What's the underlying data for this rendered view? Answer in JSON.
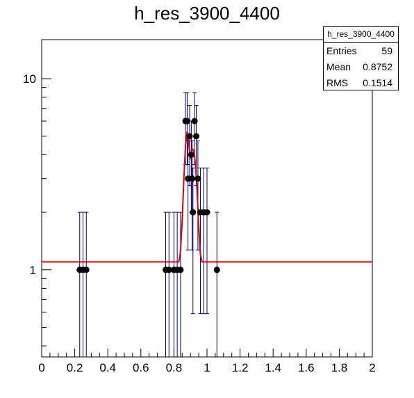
{
  "chart_data": {
    "type": "scatter",
    "title": "h_res_3900_4400",
    "xlabel": "",
    "ylabel": "",
    "xlim": [
      0,
      2
    ],
    "ylim": [
      0.35,
      16
    ],
    "yscale": "log",
    "grid": false,
    "x_ticks": [
      "0",
      "0.2",
      "0.4",
      "0.6",
      "0.8",
      "1",
      "1.2",
      "1.4",
      "1.6",
      "1.8",
      "2"
    ],
    "y_ticks": [
      "1",
      "10"
    ],
    "stats_box": {
      "title": "h_res_3900_4400",
      "entries_label": "Entries",
      "entries_value": "59",
      "mean_label": "Mean",
      "mean_value": "0.8752",
      "rms_label": "RMS",
      "rms_value": "0.1514",
      "placement": "top-right"
    },
    "series": [
      {
        "points": [
          {
            "x": 0.23,
            "y": 1,
            "lo": 0,
            "hi": 2
          },
          {
            "x": 0.25,
            "y": 1,
            "lo": 0,
            "hi": 2
          },
          {
            "x": 0.27,
            "y": 1,
            "lo": 0,
            "hi": 2
          },
          {
            "x": 0.75,
            "y": 1,
            "lo": 0,
            "hi": 2
          },
          {
            "x": 0.77,
            "y": 1,
            "lo": 0,
            "hi": 2
          },
          {
            "x": 0.8,
            "y": 1,
            "lo": 0,
            "hi": 2
          },
          {
            "x": 0.82,
            "y": 1,
            "lo": 0,
            "hi": 2
          },
          {
            "x": 0.84,
            "y": 1,
            "lo": 0,
            "hi": 2
          },
          {
            "x": 0.87,
            "y": 6,
            "lo": 3.55,
            "hi": 8.45
          },
          {
            "x": 0.88,
            "y": 6,
            "lo": 3.55,
            "hi": 8.45
          },
          {
            "x": 0.885,
            "y": 3,
            "lo": 1.27,
            "hi": 4.73
          },
          {
            "x": 0.895,
            "y": 5,
            "lo": 2.76,
            "hi": 7.24
          },
          {
            "x": 0.905,
            "y": 4,
            "lo": 2.0,
            "hi": 6.0
          },
          {
            "x": 0.91,
            "y": 3,
            "lo": 1.27,
            "hi": 4.73
          },
          {
            "x": 0.915,
            "y": 2,
            "lo": 0.59,
            "hi": 3.41
          },
          {
            "x": 0.925,
            "y": 6,
            "lo": 3.55,
            "hi": 8.45
          },
          {
            "x": 0.935,
            "y": 5,
            "lo": 2.76,
            "hi": 7.24
          },
          {
            "x": 0.945,
            "y": 3,
            "lo": 1.27,
            "hi": 4.73
          },
          {
            "x": 0.96,
            "y": 2,
            "lo": 0.59,
            "hi": 3.41
          },
          {
            "x": 0.98,
            "y": 2,
            "lo": 0.59,
            "hi": 3.41
          },
          {
            "x": 1.0,
            "y": 2,
            "lo": 0.59,
            "hi": 3.41
          },
          {
            "x": 1.06,
            "y": 1,
            "lo": 0,
            "hi": 2
          }
        ]
      }
    ],
    "fit": {
      "color": "#e00000",
      "points": [
        [
          0.0,
          1.1
        ],
        [
          0.83,
          1.1
        ],
        [
          0.84,
          1.25
        ],
        [
          0.85,
          1.8
        ],
        [
          0.86,
          3.0
        ],
        [
          0.87,
          4.5
        ],
        [
          0.88,
          5.3
        ],
        [
          0.89,
          4.6
        ],
        [
          0.9,
          3.8
        ],
        [
          0.91,
          4.3
        ],
        [
          0.92,
          4.2
        ],
        [
          0.93,
          3.6
        ],
        [
          0.94,
          2.6
        ],
        [
          0.95,
          1.7
        ],
        [
          0.96,
          1.2
        ],
        [
          0.97,
          1.1
        ],
        [
          2.0,
          1.1
        ]
      ]
    },
    "colors": {
      "marker": "#000000",
      "error_bar": "#000080",
      "frame": "#000000"
    }
  }
}
